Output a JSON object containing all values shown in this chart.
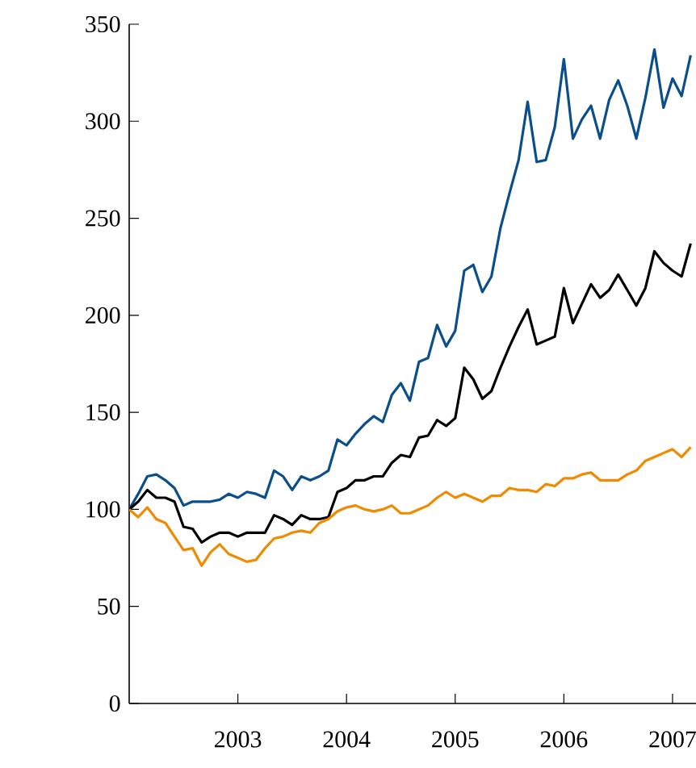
{
  "chart_data": {
    "type": "line",
    "x": [
      "2002-01",
      "2002-02",
      "2002-03",
      "2002-04",
      "2002-05",
      "2002-06",
      "2002-07",
      "2002-08",
      "2002-09",
      "2002-10",
      "2002-11",
      "2002-12",
      "2003-01",
      "2003-02",
      "2003-03",
      "2003-04",
      "2003-05",
      "2003-06",
      "2003-07",
      "2003-08",
      "2003-09",
      "2003-10",
      "2003-11",
      "2003-12",
      "2004-01",
      "2004-02",
      "2004-03",
      "2004-04",
      "2004-05",
      "2004-06",
      "2004-07",
      "2004-08",
      "2004-09",
      "2004-10",
      "2004-11",
      "2004-12",
      "2005-01",
      "2005-02",
      "2005-03",
      "2005-04",
      "2005-05",
      "2005-06",
      "2005-07",
      "2005-08",
      "2005-09",
      "2005-10",
      "2005-11",
      "2005-12",
      "2006-01",
      "2006-02",
      "2006-03",
      "2006-04",
      "2006-05",
      "2006-06",
      "2006-07",
      "2006-08",
      "2006-09",
      "2006-10",
      "2006-11",
      "2006-12",
      "2007-01",
      "2007-02",
      "2007-03"
    ],
    "series": [
      {
        "color": "#0a4f8c",
        "values": [
          100,
          108,
          117,
          118,
          115,
          111,
          102,
          104,
          104,
          104,
          105,
          108,
          106,
          109,
          108,
          106,
          120,
          117,
          110,
          117,
          115,
          117,
          120,
          136,
          133,
          139,
          144,
          148,
          145,
          159,
          165,
          156,
          176,
          178,
          195,
          184,
          192,
          223,
          226,
          212,
          220,
          245,
          263,
          280,
          310,
          279,
          280,
          297,
          332,
          291,
          301,
          308,
          291,
          311,
          321,
          308,
          291,
          312,
          337,
          307,
          322,
          313,
          334
        ]
      },
      {
        "color": "#000000",
        "values": [
          100,
          104,
          110,
          106,
          106,
          104,
          91,
          90,
          83,
          86,
          88,
          88,
          86,
          88,
          88,
          88,
          97,
          95,
          92,
          97,
          95,
          95,
          96,
          109,
          111,
          115,
          115,
          117,
          117,
          124,
          128,
          127,
          137,
          138,
          146,
          143,
          147,
          173,
          167,
          157,
          161,
          173,
          184,
          194,
          203,
          185,
          187,
          189,
          214,
          196,
          206,
          216,
          209,
          213,
          221,
          213,
          205,
          214,
          233,
          227,
          223,
          220,
          237
        ]
      },
      {
        "color": "#f08a00",
        "values": [
          100,
          96,
          101,
          95,
          93,
          86,
          79,
          80,
          71,
          78,
          82,
          77,
          75,
          73,
          74,
          80,
          85,
          86,
          88,
          89,
          88,
          93,
          95,
          99,
          101,
          102,
          100,
          99,
          100,
          102,
          98,
          98,
          100,
          102,
          106,
          109,
          106,
          108,
          106,
          104,
          107,
          107,
          111,
          110,
          110,
          109,
          113,
          112,
          116,
          116,
          118,
          119,
          115,
          115,
          115,
          118,
          120,
          125,
          127,
          129,
          131,
          127,
          132
        ]
      }
    ],
    "xlim": [
      "2002-01",
      "2007-03-19"
    ],
    "xticks": [
      {
        "value": "2003-01",
        "label": "2003"
      },
      {
        "value": "2004-01",
        "label": "2004"
      },
      {
        "value": "2005-01",
        "label": "2005"
      },
      {
        "value": "2006-01",
        "label": "2006"
      },
      {
        "value": "2007-01",
        "label": "2007"
      }
    ],
    "ylim": [
      0,
      350
    ],
    "yticks": [
      0,
      50,
      100,
      150,
      200,
      250,
      300,
      350
    ],
    "line_style": "solid"
  }
}
